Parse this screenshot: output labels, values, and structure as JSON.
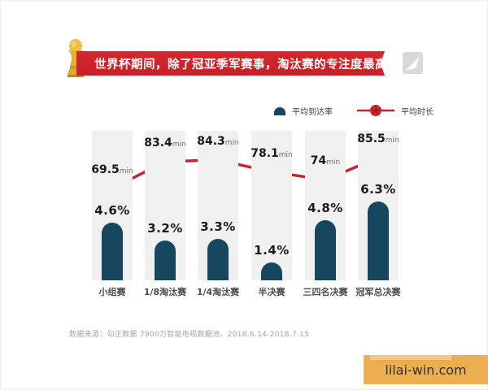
{
  "banner": {
    "title": "世界杯期间，除了冠亚季军赛事，淘汰赛的专注度最高"
  },
  "icons": {
    "banner_left": "world-cup-trophy-icon",
    "banner_right": "brand-logo-triangle",
    "legend_bar": "bar-dome-icon",
    "legend_line": "soccer-ball-marker-icon"
  },
  "legend": {
    "bar_label": "平均到达率",
    "line_label": "平均时长"
  },
  "chart_data": {
    "type": "bar",
    "subtype": "bar-line-combo",
    "categories": [
      "小组赛",
      "1/8淘汰赛",
      "1/4淘汰赛",
      "半决赛",
      "三四名决赛",
      "冠军总决赛"
    ],
    "series": [
      {
        "name": "平均到达率",
        "type": "bar",
        "unit": "%",
        "values": [
          4.6,
          3.2,
          3.3,
          1.4,
          4.8,
          6.3
        ]
      },
      {
        "name": "平均时长",
        "type": "line",
        "unit": "min",
        "values": [
          69.5,
          83.4,
          84.3,
          78.1,
          74,
          85.5
        ]
      }
    ],
    "title": "世界杯期间，除了冠亚季军赛事，淘汰赛的专注度最高",
    "xlabel": "",
    "ylabel": "",
    "legend_position": "top-right",
    "grid": false,
    "colors": {
      "banner_bg": "#cf2128",
      "bar": "#17465f",
      "line": "#c5242b",
      "marker": "#d2262e",
      "marker_pattern": "#9e1c23",
      "column_track": "#f0f0f0",
      "watermark_bg": "#ecae4e"
    }
  },
  "footer": {
    "source": "数据来源：勾正数据 7900万智能电视数据池，2018.6.14-2018.7.15"
  },
  "watermark": {
    "text": "lilai-win.com"
  }
}
